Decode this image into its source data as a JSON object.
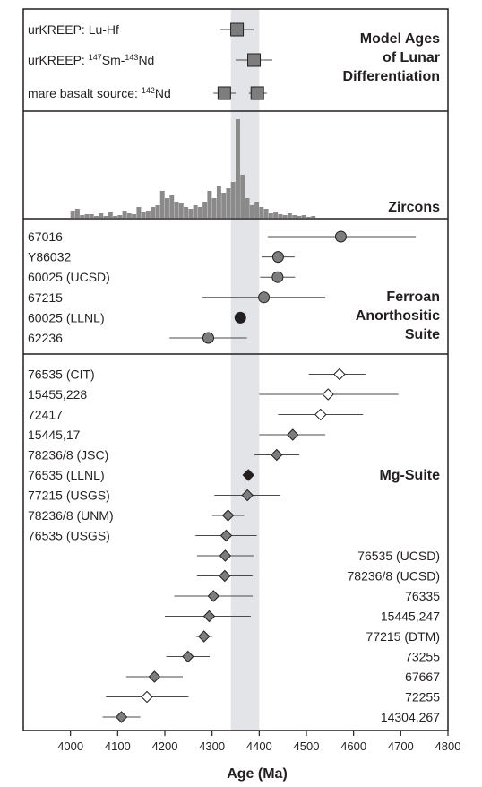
{
  "chart_data": {
    "type": "scatter",
    "xlabel": "Age (Ma)",
    "xlim": [
      3900,
      4800
    ],
    "xticks": [
      "4000",
      "4100",
      "4200",
      "4300",
      "4400",
      "4500",
      "4600",
      "4700",
      "4800"
    ],
    "highlight_band": [
      4340,
      4400
    ],
    "colors": {
      "band": "#e3e4e8",
      "marker_gray": "#7d7d7d",
      "marker_black": "#231f20",
      "marker_white": "#ffffff",
      "histogram": "#8a8a8a",
      "line": "#4a4a4a",
      "frame": "#231f20"
    },
    "panels": {
      "model_ages": {
        "title_lines": [
          "Model Ages",
          "of Lunar",
          "Differentiation"
        ],
        "rows": [
          {
            "label": "urKREEP: Lu-Hf",
            "label_html": "urKREEP: Lu-Hf",
            "points": [
              {
                "x": 4353,
                "err_lo": 4318,
                "err_hi": 4388
              }
            ]
          },
          {
            "label": "urKREEP: 147Sm-143Nd",
            "label_html": "urKREEP: <tspan dy='-5' font-size='9'>147</tspan><tspan dy='5'>Sm-</tspan><tspan dy='-5' font-size='9'>143</tspan><tspan dy='5'>Nd</tspan>",
            "points": [
              {
                "x": 4389,
                "err_lo": 4350,
                "err_hi": 4428
              }
            ]
          },
          {
            "label": "mare basalt source: 142Nd",
            "label_html": "mare basalt source: <tspan dy='-5' font-size='9'>142</tspan><tspan dy='5'>Nd</tspan>",
            "points": [
              {
                "x": 4326,
                "err_lo": 4303,
                "err_hi": 4350
              },
              {
                "x": 4396,
                "err_lo": 4378,
                "err_hi": 4416
              }
            ]
          }
        ]
      },
      "zircons": {
        "title": "Zircons",
        "bin_width": 10,
        "bins": [
          {
            "x": 4000,
            "h": 8
          },
          {
            "x": 4010,
            "h": 10
          },
          {
            "x": 4020,
            "h": 3
          },
          {
            "x": 4030,
            "h": 4
          },
          {
            "x": 4040,
            "h": 4
          },
          {
            "x": 4050,
            "h": 2
          },
          {
            "x": 4060,
            "h": 5
          },
          {
            "x": 4070,
            "h": 2
          },
          {
            "x": 4080,
            "h": 6
          },
          {
            "x": 4090,
            "h": 2
          },
          {
            "x": 4100,
            "h": 3
          },
          {
            "x": 4110,
            "h": 8
          },
          {
            "x": 4120,
            "h": 5
          },
          {
            "x": 4130,
            "h": 4
          },
          {
            "x": 4140,
            "h": 12
          },
          {
            "x": 4150,
            "h": 6
          },
          {
            "x": 4160,
            "h": 8
          },
          {
            "x": 4170,
            "h": 12
          },
          {
            "x": 4180,
            "h": 14
          },
          {
            "x": 4190,
            "h": 30
          },
          {
            "x": 4200,
            "h": 22
          },
          {
            "x": 4210,
            "h": 25
          },
          {
            "x": 4220,
            "h": 18
          },
          {
            "x": 4230,
            "h": 16
          },
          {
            "x": 4240,
            "h": 12
          },
          {
            "x": 4250,
            "h": 10
          },
          {
            "x": 4260,
            "h": 14
          },
          {
            "x": 4270,
            "h": 12
          },
          {
            "x": 4280,
            "h": 18
          },
          {
            "x": 4290,
            "h": 30
          },
          {
            "x": 4300,
            "h": 22
          },
          {
            "x": 4310,
            "h": 35
          },
          {
            "x": 4320,
            "h": 28
          },
          {
            "x": 4330,
            "h": 33
          },
          {
            "x": 4340,
            "h": 40
          },
          {
            "x": 4350,
            "h": 110
          },
          {
            "x": 4360,
            "h": 48
          },
          {
            "x": 4370,
            "h": 22
          },
          {
            "x": 4380,
            "h": 14
          },
          {
            "x": 4390,
            "h": 18
          },
          {
            "x": 4400,
            "h": 12
          },
          {
            "x": 4410,
            "h": 10
          },
          {
            "x": 4420,
            "h": 5
          },
          {
            "x": 4430,
            "h": 7
          },
          {
            "x": 4440,
            "h": 4
          },
          {
            "x": 4450,
            "h": 3
          },
          {
            "x": 4460,
            "h": 5
          },
          {
            "x": 4470,
            "h": 3
          },
          {
            "x": 4480,
            "h": 2
          },
          {
            "x": 4490,
            "h": 3
          },
          {
            "x": 4500,
            "h": 1
          },
          {
            "x": 4510,
            "h": 2
          }
        ]
      },
      "ferroan": {
        "title_lines": [
          "Ferroan",
          "Anorthositic",
          "Suite"
        ],
        "marker": "circle",
        "rows": [
          {
            "label": "67016",
            "x": 4573,
            "err_lo": 4418,
            "err_hi": 4732,
            "fill": "gray"
          },
          {
            "label": "Y86032",
            "x": 4440,
            "err_lo": 4405,
            "err_hi": 4475,
            "fill": "gray"
          },
          {
            "label": "60025 (UCSD)",
            "x": 4439,
            "err_lo": 4402,
            "err_hi": 4476,
            "fill": "gray"
          },
          {
            "label": "67215",
            "x": 4410,
            "err_lo": 4280,
            "err_hi": 4540,
            "fill": "gray"
          },
          {
            "label": "60025 (LLNL)",
            "x": 4360,
            "err_lo": 4357,
            "err_hi": 4363,
            "fill": "black"
          },
          {
            "label": "62236",
            "x": 4292,
            "err_lo": 4210,
            "err_hi": 4374,
            "fill": "gray"
          }
        ]
      },
      "mgsuite": {
        "title": "Mg-Suite",
        "marker": "diamond",
        "rows": [
          {
            "label": "76535 (CIT)",
            "side": "left",
            "x": 4570,
            "err_lo": 4505,
            "err_hi": 4625,
            "fill": "white"
          },
          {
            "label": "15455,228",
            "side": "left",
            "x": 4546,
            "err_lo": 4400,
            "err_hi": 4695,
            "fill": "white"
          },
          {
            "label": "72417",
            "side": "left",
            "x": 4530,
            "err_lo": 4440,
            "err_hi": 4620,
            "fill": "white"
          },
          {
            "label": "15445,17",
            "side": "left",
            "x": 4471,
            "err_lo": 4400,
            "err_hi": 4540,
            "fill": "gray"
          },
          {
            "label": "78236/8 (JSC)",
            "side": "left",
            "x": 4437,
            "err_lo": 4390,
            "err_hi": 4485,
            "fill": "gray"
          },
          {
            "label": "76535 (LLNL)",
            "side": "left",
            "x": 4377,
            "err_lo": 4375,
            "err_hi": 4379,
            "fill": "black"
          },
          {
            "label": "77215 (USGS)",
            "side": "left",
            "x": 4375,
            "err_lo": 4305,
            "err_hi": 4445,
            "fill": "gray"
          },
          {
            "label": "78236/8 (UNM)",
            "side": "left",
            "x": 4334,
            "err_lo": 4300,
            "err_hi": 4368,
            "fill": "gray"
          },
          {
            "label": "76535 (USGS)",
            "side": "left",
            "x": 4330,
            "err_lo": 4265,
            "err_hi": 4395,
            "fill": "gray"
          },
          {
            "label": "76535 (UCSD)",
            "side": "right",
            "x": 4328,
            "err_lo": 4268,
            "err_hi": 4388,
            "fill": "gray"
          },
          {
            "label": "78236/8 (UCSD)",
            "side": "right",
            "x": 4327,
            "err_lo": 4268,
            "err_hi": 4386,
            "fill": "gray"
          },
          {
            "label": "76335",
            "side": "right",
            "x": 4303,
            "err_lo": 4220,
            "err_hi": 4386,
            "fill": "gray"
          },
          {
            "label": "15445,247",
            "side": "right",
            "x": 4294,
            "err_lo": 4200,
            "err_hi": 4382,
            "fill": "gray"
          },
          {
            "label": "77215 (DTM)",
            "side": "right",
            "x": 4283,
            "err_lo": 4266,
            "err_hi": 4300,
            "fill": "gray"
          },
          {
            "label": "73255",
            "side": "right",
            "x": 4249,
            "err_lo": 4203,
            "err_hi": 4295,
            "fill": "gray"
          },
          {
            "label": "67667",
            "side": "right",
            "x": 4178,
            "err_lo": 4118,
            "err_hi": 4238,
            "fill": "gray"
          },
          {
            "label": "72255",
            "side": "right",
            "x": 4162,
            "err_lo": 4075,
            "err_hi": 4250,
            "fill": "white"
          },
          {
            "label": "14304,267",
            "side": "right",
            "x": 4108,
            "err_lo": 4068,
            "err_hi": 4148,
            "fill": "gray"
          }
        ]
      }
    }
  }
}
